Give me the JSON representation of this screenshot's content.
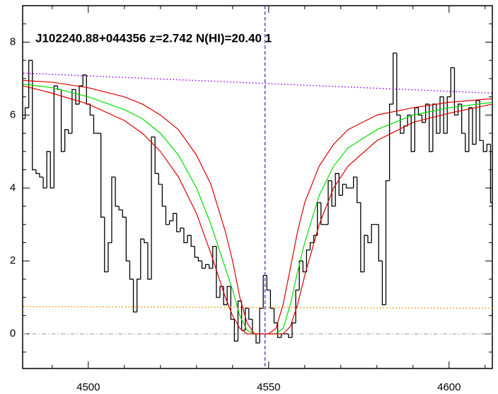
{
  "chart_data": {
    "type": "line",
    "title": "J102240.88+044356 z=2.742 N(HI)=20.40 1",
    "xlim": [
      4481.8,
      4612
    ],
    "ylim": [
      -0.95,
      9.0
    ],
    "xticks": [
      4500,
      4550,
      4600
    ],
    "yticks": [
      0,
      2,
      4,
      6,
      8
    ],
    "xminorticks": [
      4490,
      4510,
      4520,
      4530,
      4540,
      4560,
      4570,
      4580,
      4590,
      4610
    ],
    "yminorticks": [
      -0.5,
      0.5,
      1,
      1.5,
      2.5,
      3,
      3.5,
      4.5,
      5,
      5.5,
      6.5,
      7,
      7.5,
      8.5
    ],
    "zero_line": {
      "y": 0,
      "color": "#999999",
      "style": "dashdot"
    },
    "marker_line": {
      "x": 4549,
      "color": "#0000cc",
      "style": "dashed"
    },
    "series": [
      {
        "color": "#000000",
        "style": "step",
        "x": [
          4482,
          4483,
          4484,
          4485,
          4486,
          4487,
          4488,
          4489,
          4490,
          4491,
          4492,
          4493,
          4494,
          4495,
          4496,
          4497,
          4498,
          4499,
          4500,
          4501,
          4502,
          4503,
          4504,
          4505,
          4506,
          4507,
          4508,
          4509,
          4510,
          4511,
          4512,
          4513,
          4514,
          4515,
          4516,
          4517,
          4518,
          4519,
          4520,
          4521,
          4522,
          4523,
          4524,
          4525,
          4526,
          4527,
          4528,
          4529,
          4530,
          4531,
          4532,
          4533,
          4534,
          4535,
          4536,
          4537,
          4538,
          4539,
          4540,
          4541,
          4542,
          4543,
          4544,
          4545,
          4546,
          4547,
          4548,
          4549,
          4550,
          4551,
          4552,
          4553,
          4554,
          4555,
          4556,
          4557,
          4558,
          4559,
          4560,
          4561,
          4562,
          4563,
          4564,
          4565,
          4566,
          4567,
          4568,
          4569,
          4570,
          4571,
          4572,
          4573,
          4574,
          4575,
          4576,
          4577,
          4578,
          4579,
          4580,
          4581,
          4582,
          4583,
          4584,
          4585,
          4586,
          4587,
          4588,
          4589,
          4590,
          4591,
          4592,
          4593,
          4594,
          4595,
          4596,
          4597,
          4598,
          4599,
          4600,
          4601,
          4602,
          4603,
          4604,
          4605,
          4606,
          4607,
          4608,
          4609,
          4610,
          4611,
          4612
        ],
        "values": [
          5.9,
          6.2,
          7.5,
          4.5,
          4.4,
          4.3,
          4.0,
          5.0,
          4.0,
          6.8,
          6.7,
          5.0,
          5.6,
          5.5,
          6.7,
          6.3,
          6.8,
          7.1,
          6.3,
          6.0,
          5.5,
          5.5,
          3.2,
          1.7,
          2.5,
          4.3,
          3.5,
          3.4,
          3.2,
          2.0,
          1.5,
          0.6,
          1.5,
          2.6,
          2.5,
          1.5,
          5.4,
          4.4,
          4.1,
          3.5,
          3.0,
          3.1,
          3.3,
          2.8,
          2.9,
          2.5,
          2.7,
          2.4,
          2.1,
          2.0,
          1.8,
          1.9,
          1.8,
          2.4,
          1.0,
          1.3,
          0.8,
          1.3,
          0.4,
          -0.2,
          0.9,
          0.1,
          0.7,
          0.4,
          0.0,
          -0.25,
          0.7,
          1.6,
          1.2,
          0.7,
          0.3,
          -0.1,
          0.0,
          0.0,
          -0.1,
          0.3,
          1.2,
          2.0,
          1.7,
          2.3,
          2.5,
          2.7,
          3.6,
          3.0,
          3.0,
          4.2,
          3.5,
          4.4,
          3.8,
          4.1,
          4.0,
          4.0,
          4.3,
          3.6,
          1.7,
          2.7,
          2.5,
          3.0,
          3.0,
          2.0,
          0.8,
          4.2,
          6.3,
          7.7,
          6.0,
          5.5,
          5.7,
          6.0,
          5.0,
          6.2,
          6.0,
          5.8,
          6.3,
          5.0,
          6.3,
          5.5,
          6.5,
          5.5,
          6.5,
          7.3,
          6.0,
          6.3,
          5.5,
          5.0,
          6.2,
          5.2,
          6.4,
          5.3,
          5.0,
          5.2,
          3.6
        ]
      },
      {
        "color": "#00dd00",
        "style": "solid",
        "x": [
          4482,
          4490,
          4500,
          4510,
          4515,
          4520,
          4525,
          4530,
          4534,
          4538,
          4540,
          4542,
          4544,
          4546,
          4548,
          4550,
          4552,
          4554,
          4556,
          4558,
          4560,
          4564,
          4568,
          4572,
          4580,
          4590,
          4600,
          4612
        ],
        "values": [
          6.85,
          6.75,
          6.5,
          6.15,
          5.9,
          5.5,
          4.9,
          4.0,
          3.0,
          1.8,
          1.2,
          0.5,
          0.1,
          0.0,
          0.0,
          0.0,
          0.0,
          0.15,
          0.8,
          1.7,
          2.5,
          3.8,
          4.6,
          5.1,
          5.6,
          6.0,
          6.2,
          6.35
        ]
      },
      {
        "color": "#dd0000",
        "style": "solid",
        "x": [
          4482,
          4490,
          4500,
          4510,
          4515,
          4520,
          4525,
          4530,
          4534,
          4538,
          4540,
          4542,
          4544,
          4546,
          4548,
          4550,
          4552,
          4554,
          4556,
          4558,
          4560,
          4564,
          4568,
          4572,
          4580,
          4590,
          4600,
          4612
        ],
        "values": [
          6.95,
          6.9,
          6.75,
          6.5,
          6.3,
          6.0,
          5.6,
          4.9,
          4.1,
          2.8,
          2.0,
          1.0,
          0.3,
          0.0,
          0.0,
          0.0,
          0.15,
          0.8,
          1.8,
          2.8,
          3.6,
          4.6,
          5.2,
          5.6,
          6.0,
          6.2,
          6.35,
          6.45
        ]
      },
      {
        "color": "#dd0000",
        "style": "solid",
        "x": [
          4482,
          4490,
          4500,
          4510,
          4515,
          4520,
          4525,
          4530,
          4534,
          4538,
          4540,
          4542,
          4544,
          4546,
          4548,
          4550,
          4552,
          4554,
          4556,
          4558,
          4560,
          4564,
          4568,
          4572,
          4580,
          4590,
          4600,
          4612
        ],
        "values": [
          6.8,
          6.6,
          6.3,
          5.85,
          5.5,
          5.0,
          4.3,
          3.3,
          2.2,
          1.0,
          0.5,
          0.15,
          0.0,
          0.0,
          0.0,
          0.0,
          0.0,
          0.0,
          0.2,
          0.8,
          1.6,
          3.0,
          4.0,
          4.6,
          5.3,
          5.8,
          6.05,
          6.3
        ]
      },
      {
        "color": "#9900ff",
        "style": "dotted",
        "x": [
          4482,
          4612
        ],
        "values": [
          7.15,
          6.6
        ]
      },
      {
        "color": "#ff8800",
        "style": "dotted",
        "x": [
          4482,
          4612
        ],
        "values": [
          0.75,
          0.7
        ]
      }
    ]
  }
}
